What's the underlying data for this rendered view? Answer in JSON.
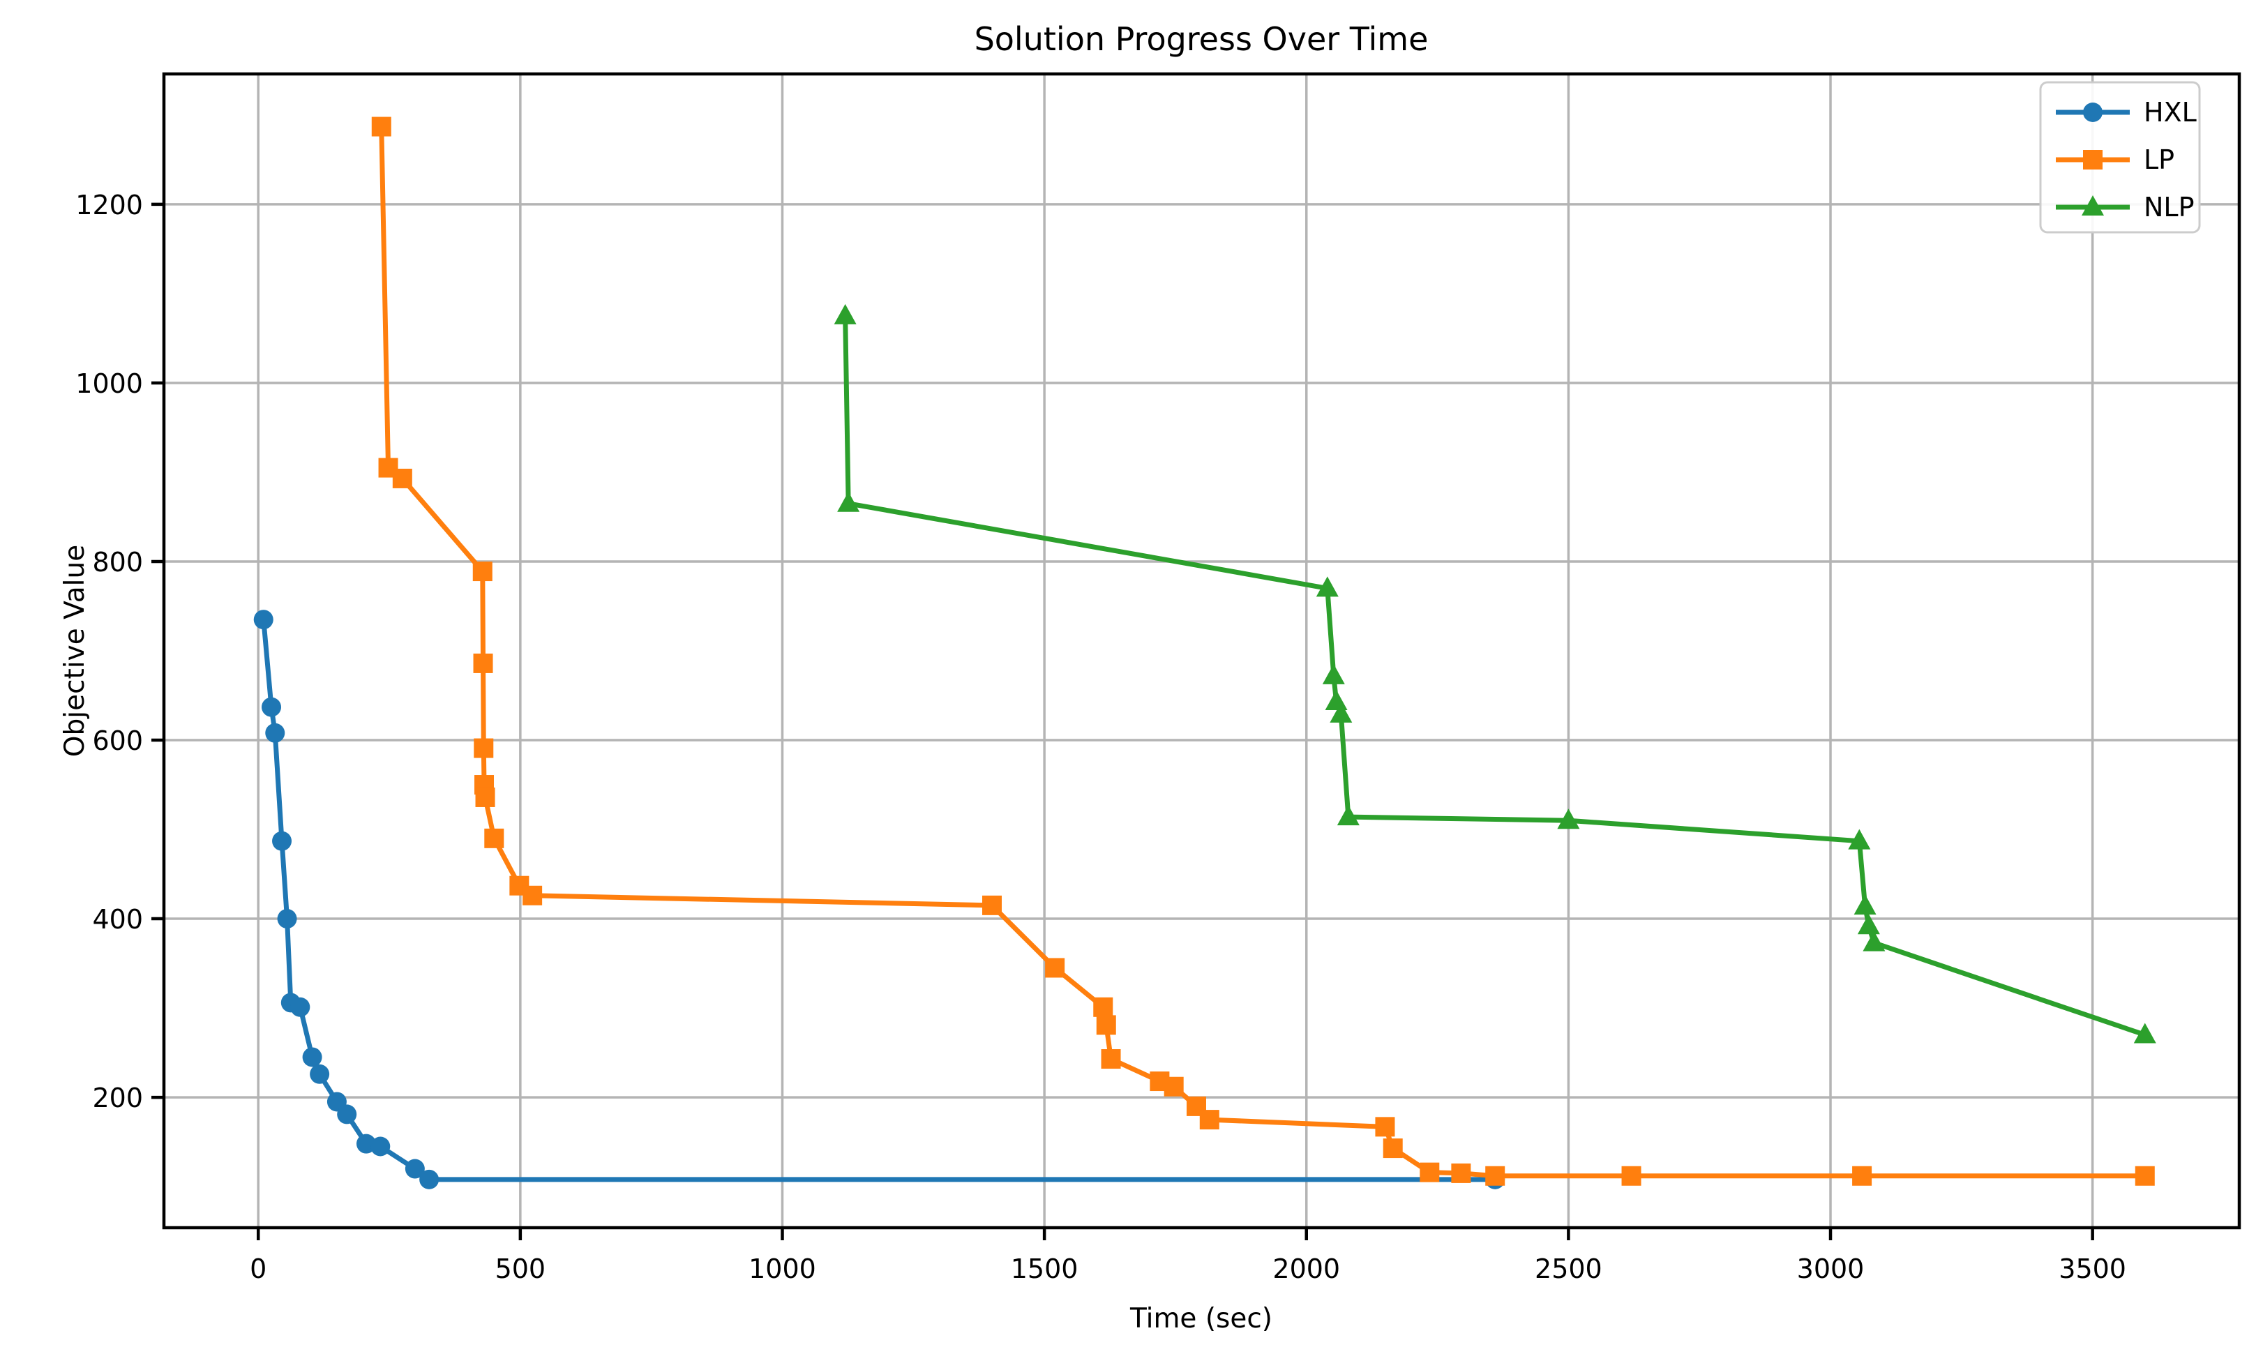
{
  "figure": {
    "background": "#ffffff",
    "text_color": "#000000",
    "spine_color": "#000000"
  },
  "chart_data": {
    "type": "line",
    "title": "Solution Progress Over Time",
    "xlabel": "Time (sec)",
    "ylabel": "Objective Value",
    "xlim": [
      -180,
      3780
    ],
    "ylim": [
      54,
      1346
    ],
    "x_ticks": [
      0,
      500,
      1000,
      1500,
      2000,
      2500,
      3000,
      3500
    ],
    "y_ticks": [
      200,
      400,
      600,
      800,
      1000,
      1200
    ],
    "grid": true,
    "grid_color": "#b4b4b4",
    "legend_position": "upper right",
    "legend_border_color": "#cccccc",
    "series": [
      {
        "name": "HXL",
        "color": "#1f77b4",
        "marker": "circle",
        "x": [
          10,
          25,
          32,
          45,
          55,
          62,
          80,
          103,
          117,
          150,
          169,
          206,
          233,
          299,
          326,
          2360
        ],
        "y": [
          735,
          637,
          608,
          487,
          400,
          306,
          301,
          245,
          226,
          195,
          181,
          148,
          145,
          120,
          108,
          108
        ]
      },
      {
        "name": "LP",
        "color": "#ff7f0e",
        "marker": "square",
        "x": [
          235,
          248,
          275,
          428,
          429,
          430,
          431,
          433,
          450,
          498,
          523,
          1400,
          1520,
          1612,
          1618,
          1627,
          1720,
          1747,
          1790,
          1815,
          2150,
          2165,
          2235,
          2295,
          2360,
          2620,
          3060,
          3600
        ],
        "y": [
          1287,
          905,
          893,
          789,
          686,
          591,
          550,
          536,
          490,
          437,
          426,
          415,
          345,
          301,
          281,
          243,
          218,
          212,
          190,
          175,
          167,
          143,
          116,
          115,
          112,
          112,
          112,
          112
        ]
      },
      {
        "name": "NLP",
        "color": "#2ca02c",
        "marker": "triangle",
        "x": [
          1120,
          1126,
          2040,
          2052,
          2057,
          2066,
          2080,
          2500,
          3055,
          3066,
          3073,
          3083,
          3600
        ],
        "y": [
          1075,
          865,
          770,
          672,
          643,
          629,
          514,
          510,
          487,
          414,
          392,
          373,
          270
        ]
      }
    ]
  }
}
